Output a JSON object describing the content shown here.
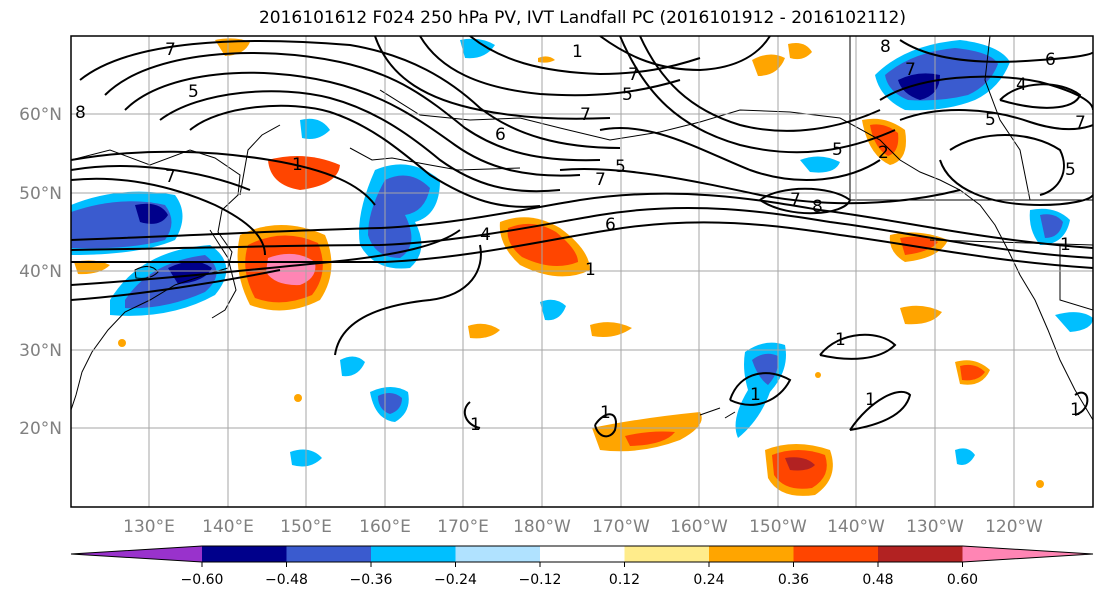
{
  "title": "2016101612 F024 250 hPa PV, IVT Landfall PC (2016101912 - 2016102112)",
  "map": {
    "projection": "equirectangular",
    "lon_range_east": [
      120,
      250
    ],
    "lat_range": [
      10,
      70
    ],
    "lon_ticks": [
      "130°E",
      "140°E",
      "150°E",
      "160°E",
      "170°E",
      "180°W",
      "170°W",
      "160°W",
      "150°W",
      "140°W",
      "130°W",
      "120°W"
    ],
    "lat_ticks": [
      "20°N",
      "30°N",
      "40°N",
      "50°N",
      "60°N"
    ],
    "gridlines": true,
    "contour_labels": [
      "1",
      "2",
      "4",
      "5",
      "6",
      "7",
      "8"
    ]
  },
  "colorbar": {
    "ticks": [
      "−0.60",
      "−0.48",
      "−0.36",
      "−0.24",
      "−0.12",
      "0.12",
      "0.24",
      "0.36",
      "0.48",
      "0.60"
    ],
    "colors": [
      "#9932cc",
      "#00008b",
      "#3a5bcf",
      "#00bfff",
      "#b0e2ff",
      "#ffffff",
      "#ffec8b",
      "#ffa500",
      "#ff4500",
      "#b22222",
      "#ff85b4"
    ],
    "extend": "both"
  }
}
